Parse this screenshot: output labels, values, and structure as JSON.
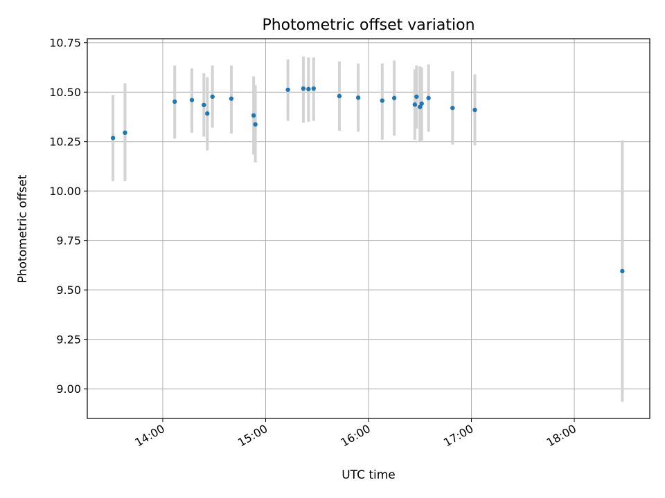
{
  "chart_data": {
    "type": "scatter",
    "title": "Photometric offset variation",
    "xlabel": "UTC time",
    "ylabel": "Photometric offset",
    "xlim": [
      "13:16",
      "18:44"
    ],
    "ylim": [
      8.85,
      10.77
    ],
    "grid": true,
    "x_ticks": [
      "14:00",
      "15:00",
      "16:00",
      "17:00",
      "18:00"
    ],
    "y_ticks": [
      "9.00",
      "9.25",
      "9.50",
      "9.75",
      "10.00",
      "10.25",
      "10.50",
      "10.75"
    ],
    "marker_color": "#1f77b4",
    "errorbar_color": "#d3d3d3",
    "series": [
      {
        "points": [
          {
            "x": "13:31",
            "y": 10.268,
            "ylow": 10.05,
            "yhigh": 10.485
          },
          {
            "x": "13:38",
            "y": 10.295,
            "ylow": 10.05,
            "yhigh": 10.545
          },
          {
            "x": "14:07",
            "y": 10.452,
            "ylow": 10.265,
            "yhigh": 10.635
          },
          {
            "x": "14:17",
            "y": 10.46,
            "ylow": 10.295,
            "yhigh": 10.62
          },
          {
            "x": "14:24",
            "y": 10.435,
            "ylow": 10.275,
            "yhigh": 10.595
          },
          {
            "x": "14:26",
            "y": 10.392,
            "ylow": 10.205,
            "yhigh": 10.575
          },
          {
            "x": "14:29",
            "y": 10.477,
            "ylow": 10.32,
            "yhigh": 10.635
          },
          {
            "x": "14:40",
            "y": 10.467,
            "ylow": 10.29,
            "yhigh": 10.635
          },
          {
            "x": "14:53",
            "y": 10.382,
            "ylow": 10.185,
            "yhigh": 10.58
          },
          {
            "x": "14:54",
            "y": 10.337,
            "ylow": 10.145,
            "yhigh": 10.535
          },
          {
            "x": "15:13",
            "y": 10.512,
            "ylow": 10.355,
            "yhigh": 10.665
          },
          {
            "x": "15:22",
            "y": 10.518,
            "ylow": 10.345,
            "yhigh": 10.68
          },
          {
            "x": "15:25",
            "y": 10.515,
            "ylow": 10.35,
            "yhigh": 10.675
          },
          {
            "x": "15:28",
            "y": 10.518,
            "ylow": 10.355,
            "yhigh": 10.675
          },
          {
            "x": "15:43",
            "y": 10.48,
            "ylow": 10.305,
            "yhigh": 10.655
          },
          {
            "x": "15:54",
            "y": 10.472,
            "ylow": 10.3,
            "yhigh": 10.645
          },
          {
            "x": "16:08",
            "y": 10.457,
            "ylow": 10.26,
            "yhigh": 10.645
          },
          {
            "x": "16:15",
            "y": 10.47,
            "ylow": 10.28,
            "yhigh": 10.66
          },
          {
            "x": "16:27",
            "y": 10.437,
            "ylow": 10.26,
            "yhigh": 10.615
          },
          {
            "x": "16:28",
            "y": 10.477,
            "ylow": 10.315,
            "yhigh": 10.635
          },
          {
            "x": "16:30",
            "y": 10.425,
            "ylow": 10.25,
            "yhigh": 10.63
          },
          {
            "x": "16:31",
            "y": 10.442,
            "ylow": 10.255,
            "yhigh": 10.625
          },
          {
            "x": "16:35",
            "y": 10.47,
            "ylow": 10.3,
            "yhigh": 10.64
          },
          {
            "x": "16:49",
            "y": 10.42,
            "ylow": 10.235,
            "yhigh": 10.605
          },
          {
            "x": "17:02",
            "y": 10.41,
            "ylow": 10.23,
            "yhigh": 10.59
          },
          {
            "x": "18:28",
            "y": 9.595,
            "ylow": 8.935,
            "yhigh": 10.255
          }
        ]
      }
    ]
  }
}
